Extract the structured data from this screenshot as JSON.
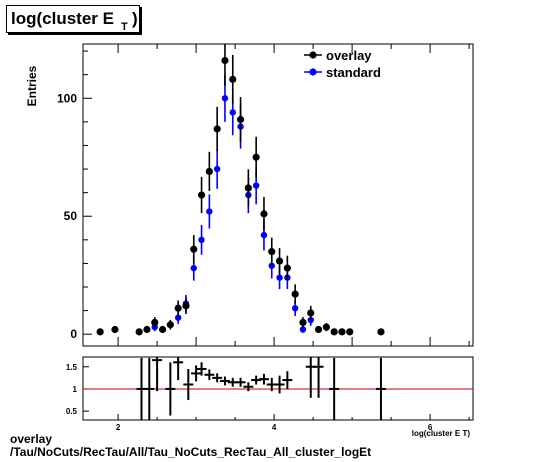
{
  "title": {
    "main": "log(cluster E",
    "sub": "T",
    "close": ")"
  },
  "footer": {
    "line1": "overlay",
    "line2": "/Tau/NoCuts/RecTau/All/Tau_NoCuts_RecTau_All_cluster_logEt"
  },
  "colors": {
    "overlay": "#000000",
    "standard": "#0000ff",
    "ratio_line": "#cc0000"
  },
  "chart_data": [
    {
      "type": "scatter",
      "ylabel": "Entries",
      "xlim": [
        1.55,
        6.55
      ],
      "ylim": [
        -5,
        123
      ],
      "yticks": [
        0,
        50,
        100
      ],
      "legend": {
        "placement": "top-right",
        "entries": [
          "overlay",
          "standard"
        ]
      },
      "series": [
        {
          "name": "overlay",
          "x": [
            1.77,
            1.96,
            2.27,
            2.37,
            2.47,
            2.57,
            2.67,
            2.77,
            2.87,
            2.97,
            3.07,
            3.17,
            3.27,
            3.37,
            3.47,
            3.57,
            3.67,
            3.77,
            3.87,
            3.97,
            4.07,
            4.17,
            4.27,
            4.37,
            4.47,
            4.57,
            4.67,
            4.77,
            4.87,
            4.97,
            5.37
          ],
          "y": [
            1,
            2,
            1,
            2,
            5,
            2,
            4,
            11,
            12,
            36,
            59,
            69,
            87,
            116,
            108,
            91,
            62,
            75,
            51,
            35,
            31,
            28,
            17,
            5,
            9,
            2,
            3,
            1,
            1,
            1,
            1
          ]
        },
        {
          "name": "standard",
          "x": [
            2.47,
            2.77,
            2.87,
            2.97,
            3.07,
            3.17,
            3.27,
            3.37,
            3.47,
            3.57,
            3.67,
            3.77,
            3.87,
            3.97,
            4.07,
            4.17,
            4.27,
            4.37,
            4.47
          ],
          "y": [
            3,
            7,
            13,
            28,
            40,
            52,
            70,
            100,
            94,
            88,
            59,
            63,
            42,
            29,
            24,
            24,
            11,
            2,
            6
          ]
        }
      ]
    },
    {
      "type": "scatter",
      "xlabel": "log(cluster E_T)",
      "xlim": [
        1.55,
        6.55
      ],
      "ylim": [
        0.3,
        1.72
      ],
      "yticks": [
        0.5,
        1,
        1.5
      ],
      "xticks": [
        2,
        4,
        6
      ],
      "reference_line": 1,
      "series": [
        {
          "name": "ratio",
          "x": [
            2.3,
            2.4,
            2.5,
            2.67,
            2.77,
            2.9,
            3.0,
            3.07,
            3.17,
            3.27,
            3.37,
            3.47,
            3.57,
            3.67,
            3.77,
            3.87,
            3.97,
            4.07,
            4.17,
            4.47,
            4.57,
            4.77,
            5.37
          ],
          "y": [
            1.0,
            1.0,
            1.65,
            1.0,
            1.6,
            1.1,
            1.35,
            1.45,
            1.32,
            1.25,
            1.18,
            1.15,
            1.15,
            1.05,
            1.2,
            1.22,
            1.1,
            1.1,
            1.2,
            1.5,
            1.5,
            1.0,
            1.0
          ],
          "yerr": [
            0.7,
            0.7,
            0.7,
            0.6,
            0.4,
            0.35,
            0.18,
            0.15,
            0.12,
            0.1,
            0.1,
            0.1,
            0.1,
            0.1,
            0.1,
            0.12,
            0.15,
            0.2,
            0.2,
            0.7,
            0.7,
            0.7,
            0.7
          ]
        }
      ]
    }
  ]
}
